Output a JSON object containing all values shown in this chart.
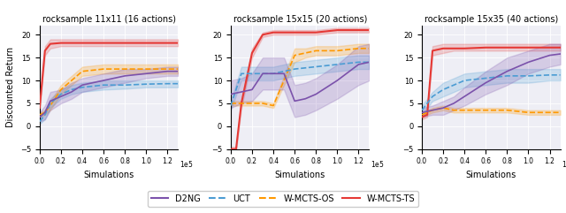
{
  "titles": [
    "rocksample 11x11 (16 actions)",
    "rocksample 15x15 (20 actions)",
    "rocksample 15x35 (40 actions)"
  ],
  "xlabel": "Simulations",
  "ylabel": "Discounted Return",
  "ylim": [
    -5,
    22
  ],
  "xlim": [
    0,
    130000
  ],
  "xticks": [
    0,
    20000,
    40000,
    60000,
    80000,
    100000,
    120000
  ],
  "xtick_labels": [
    "0.0",
    "0.2",
    "0.4",
    "0.6",
    "0.8",
    "1.0",
    "1.2"
  ],
  "colors": {
    "D2NG": "#7B52AB",
    "UCT": "#4B9CD3",
    "W-MCTS-OS": "#FF9800",
    "W-MCTS-TS": "#E53935"
  },
  "plot1": {
    "D2NG": {
      "x": [
        0,
        5000,
        10000,
        20000,
        30000,
        40000,
        60000,
        80000,
        100000,
        120000,
        130000
      ],
      "y": [
        2.0,
        3.0,
        5.5,
        6.5,
        7.5,
        9.0,
        10.0,
        11.0,
        11.5,
        12.0,
        12.0
      ],
      "y_lo": [
        1.0,
        1.5,
        3.5,
        5.0,
        6.0,
        7.5,
        8.5,
        9.5,
        10.5,
        11.0,
        11.0
      ],
      "y_hi": [
        3.0,
        4.5,
        7.5,
        8.0,
        9.5,
        10.5,
        11.5,
        12.5,
        12.5,
        13.0,
        13.0
      ]
    },
    "UCT": {
      "x": [
        0,
        5000,
        10000,
        20000,
        30000,
        40000,
        60000,
        80000,
        100000,
        120000,
        130000
      ],
      "y": [
        1.0,
        2.5,
        5.0,
        7.0,
        8.0,
        8.5,
        9.0,
        9.0,
        9.2,
        9.3,
        9.3
      ],
      "y_lo": [
        0.5,
        1.5,
        4.0,
        6.0,
        7.0,
        7.5,
        8.0,
        8.2,
        8.5,
        8.5,
        8.5
      ],
      "y_hi": [
        1.5,
        3.5,
        6.0,
        8.0,
        9.0,
        9.5,
        10.0,
        10.0,
        10.0,
        10.0,
        10.0
      ]
    },
    "W-MCTS-OS": {
      "x": [
        0,
        5000,
        10000,
        20000,
        30000,
        40000,
        60000,
        80000,
        100000,
        120000,
        130000
      ],
      "y": [
        2.5,
        3.0,
        4.5,
        8.0,
        10.0,
        12.0,
        12.5,
        12.5,
        12.5,
        12.5,
        12.5
      ],
      "y_lo": [
        2.0,
        2.5,
        3.5,
        7.0,
        9.0,
        11.0,
        11.5,
        11.5,
        11.5,
        11.5,
        11.5
      ],
      "y_hi": [
        3.0,
        3.5,
        5.5,
        9.0,
        11.0,
        13.0,
        13.5,
        13.5,
        13.5,
        13.5,
        13.5
      ]
    },
    "W-MCTS-TS": {
      "x": [
        0,
        5000,
        10000,
        20000,
        30000,
        40000,
        60000,
        80000,
        100000,
        120000,
        130000
      ],
      "y": [
        4.0,
        16.5,
        18.0,
        18.2,
        18.2,
        18.2,
        18.2,
        18.2,
        18.2,
        18.2,
        18.2
      ],
      "y_lo": [
        3.5,
        15.5,
        17.0,
        17.5,
        17.5,
        17.5,
        17.5,
        17.5,
        17.5,
        17.5,
        17.5
      ],
      "y_hi": [
        4.5,
        17.5,
        19.0,
        19.0,
        19.0,
        19.0,
        19.0,
        19.0,
        19.0,
        19.0,
        19.0
      ]
    }
  },
  "plot2": {
    "D2NG": {
      "x": [
        0,
        10000,
        20000,
        30000,
        40000,
        50000,
        60000,
        70000,
        80000,
        100000,
        120000,
        130000
      ],
      "y": [
        7.0,
        7.5,
        8.0,
        11.5,
        11.5,
        11.5,
        5.5,
        6.0,
        7.0,
        10.0,
        13.5,
        14.0
      ],
      "y_lo": [
        4.0,
        5.0,
        5.5,
        8.0,
        8.0,
        8.0,
        2.0,
        2.5,
        3.5,
        6.0,
        9.0,
        10.0
      ],
      "y_hi": [
        10.0,
        10.5,
        11.5,
        15.0,
        15.0,
        15.0,
        9.0,
        9.5,
        10.5,
        13.5,
        17.5,
        18.0
      ]
    },
    "UCT": {
      "x": [
        0,
        10000,
        20000,
        30000,
        40000,
        60000,
        80000,
        100000,
        120000,
        130000
      ],
      "y": [
        4.5,
        11.5,
        11.5,
        11.5,
        11.5,
        12.5,
        13.0,
        13.5,
        14.0,
        14.0
      ],
      "y_lo": [
        3.5,
        10.0,
        10.0,
        10.0,
        10.0,
        11.0,
        11.5,
        12.0,
        12.5,
        12.5
      ],
      "y_hi": [
        5.5,
        13.0,
        13.0,
        13.0,
        13.0,
        14.0,
        14.5,
        15.0,
        15.5,
        15.5
      ]
    },
    "W-MCTS-OS": {
      "x": [
        0,
        10000,
        20000,
        30000,
        40000,
        60000,
        70000,
        80000,
        100000,
        120000,
        130000
      ],
      "y": [
        5.0,
        5.0,
        5.0,
        5.0,
        4.5,
        15.5,
        16.0,
        16.5,
        16.5,
        17.0,
        17.0
      ],
      "y_lo": [
        4.5,
        4.5,
        4.5,
        4.5,
        4.0,
        14.0,
        15.0,
        15.5,
        15.5,
        16.0,
        16.0
      ],
      "y_hi": [
        5.5,
        5.5,
        5.5,
        5.5,
        5.0,
        17.0,
        17.0,
        17.5,
        17.5,
        18.0,
        18.0
      ]
    },
    "W-MCTS-TS": {
      "x": [
        0,
        5000,
        10000,
        20000,
        30000,
        40000,
        50000,
        60000,
        80000,
        100000,
        120000,
        130000
      ],
      "y": [
        -5.0,
        -5.0,
        5.0,
        16.0,
        20.0,
        20.5,
        20.5,
        20.5,
        20.5,
        21.0,
        21.0,
        21.0
      ],
      "y_lo": [
        -5.5,
        -5.5,
        4.0,
        15.0,
        19.5,
        20.0,
        20.0,
        20.0,
        20.0,
        20.5,
        20.5,
        20.5
      ],
      "y_hi": [
        -4.5,
        -4.5,
        6.0,
        17.0,
        20.5,
        21.0,
        21.0,
        21.0,
        21.0,
        21.5,
        21.5,
        21.5
      ]
    }
  },
  "plot3": {
    "D2NG": {
      "x": [
        0,
        10000,
        20000,
        30000,
        40000,
        60000,
        80000,
        100000,
        120000,
        130000
      ],
      "y": [
        3.0,
        3.5,
        4.0,
        5.0,
        6.5,
        9.5,
        12.0,
        14.0,
        15.5,
        15.8
      ],
      "y_lo": [
        2.0,
        2.5,
        2.5,
        3.5,
        4.5,
        7.0,
        9.0,
        11.5,
        13.0,
        13.5
      ],
      "y_hi": [
        4.0,
        4.5,
        5.5,
        6.5,
        8.5,
        12.0,
        15.0,
        16.5,
        18.0,
        18.0
      ]
    },
    "UCT": {
      "x": [
        0,
        10000,
        20000,
        30000,
        40000,
        60000,
        80000,
        100000,
        120000,
        130000
      ],
      "y": [
        3.5,
        6.5,
        8.0,
        9.0,
        10.0,
        10.5,
        11.0,
        11.0,
        11.2,
        11.2
      ],
      "y_lo": [
        2.5,
        5.5,
        6.5,
        7.5,
        8.5,
        9.0,
        9.5,
        9.5,
        10.0,
        10.0
      ],
      "y_hi": [
        4.5,
        7.5,
        9.5,
        10.5,
        11.5,
        12.0,
        12.5,
        12.5,
        12.5,
        12.5
      ]
    },
    "W-MCTS-OS": {
      "x": [
        0,
        10000,
        20000,
        30000,
        40000,
        60000,
        80000,
        100000,
        120000,
        130000
      ],
      "y": [
        2.5,
        3.5,
        4.0,
        3.5,
        3.5,
        3.5,
        3.5,
        3.0,
        3.0,
        3.0
      ],
      "y_lo": [
        2.0,
        3.0,
        3.5,
        3.0,
        3.0,
        3.0,
        3.0,
        2.5,
        2.5,
        2.5
      ],
      "y_hi": [
        3.0,
        4.0,
        4.5,
        4.0,
        4.0,
        4.0,
        4.0,
        3.5,
        3.5,
        3.5
      ]
    },
    "W-MCTS-TS": {
      "x": [
        0,
        5000,
        10000,
        20000,
        30000,
        40000,
        60000,
        80000,
        100000,
        120000,
        130000
      ],
      "y": [
        2.0,
        2.5,
        16.5,
        17.0,
        17.0,
        17.0,
        17.2,
        17.2,
        17.2,
        17.2,
        17.2
      ],
      "y_lo": [
        1.5,
        2.0,
        15.5,
        16.0,
        16.5,
        16.5,
        16.5,
        16.5,
        16.5,
        16.5,
        16.5
      ],
      "y_hi": [
        2.5,
        3.0,
        17.5,
        18.0,
        18.0,
        18.0,
        18.0,
        18.0,
        18.0,
        18.0,
        18.0
      ]
    }
  },
  "background_color": "#eeeef5"
}
